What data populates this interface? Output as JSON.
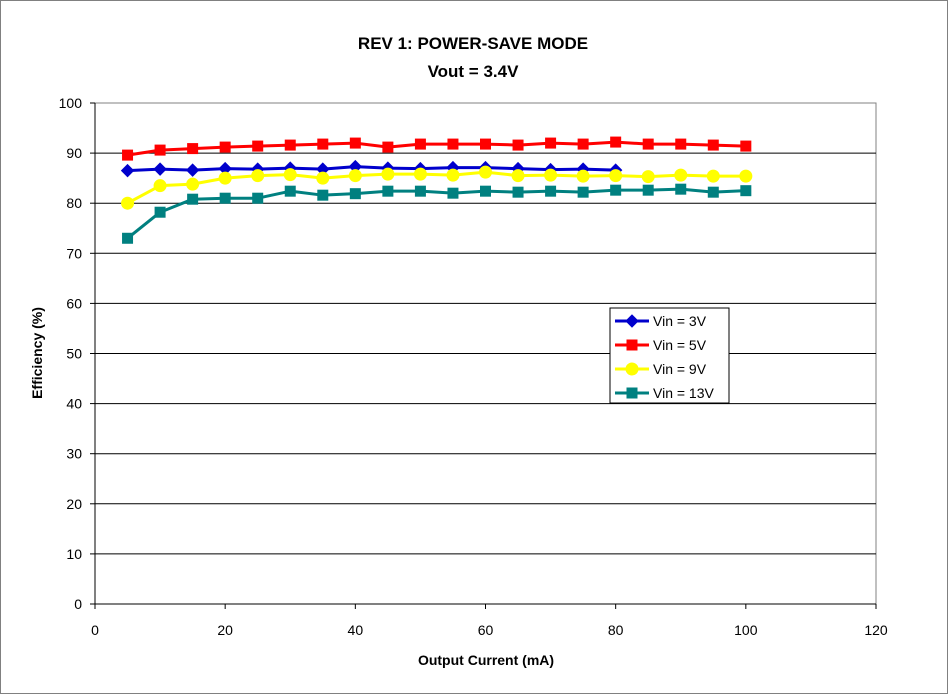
{
  "chart_data": {
    "type": "line",
    "title": "REV 1: POWER-SAVE MODE",
    "subtitle": "Vout = 3.4V",
    "xlabel": "Output Current (mA)",
    "ylabel": "Efficiency (%)",
    "xlim": [
      0,
      120
    ],
    "ylim": [
      0,
      100
    ],
    "xticks": [
      0,
      20,
      40,
      60,
      80,
      100,
      120
    ],
    "yticks": [
      0,
      10,
      20,
      30,
      40,
      50,
      60,
      70,
      80,
      90,
      100
    ],
    "xtick_labels": [
      "0",
      "20",
      "40",
      "60",
      "80",
      "100",
      "120"
    ],
    "ytick_labels": [
      "0",
      "10",
      "20",
      "30",
      "40",
      "50",
      "60",
      "70",
      "80",
      "90",
      "100"
    ],
    "grid": "horizontal major",
    "legend_position": "right-center",
    "plot_background": "#ffffff",
    "series": [
      {
        "name": "Vin = 3V",
        "color": "#0000cc",
        "marker": "diamond",
        "x": [
          5,
          10,
          15,
          20,
          25,
          30,
          35,
          40,
          45,
          50,
          55,
          60,
          65,
          70,
          75,
          80
        ],
        "y": [
          86.5,
          86.8,
          86.6,
          86.9,
          86.8,
          87.0,
          86.8,
          87.3,
          87.0,
          86.9,
          87.1,
          87.1,
          86.9,
          86.7,
          86.8,
          86.6
        ]
      },
      {
        "name": "Vin = 5V",
        "color": "#ff0000",
        "marker": "square",
        "x": [
          5,
          10,
          15,
          20,
          25,
          30,
          35,
          40,
          45,
          50,
          55,
          60,
          65,
          70,
          75,
          80,
          85,
          90,
          95,
          100
        ],
        "y": [
          89.6,
          90.6,
          90.9,
          91.2,
          91.4,
          91.6,
          91.8,
          92.0,
          91.2,
          91.8,
          91.8,
          91.8,
          91.6,
          92.0,
          91.8,
          92.2,
          91.8,
          91.8,
          91.6,
          91.4
        ]
      },
      {
        "name": "Vin = 9V",
        "color": "#ffff00",
        "marker": "circle",
        "x": [
          5,
          10,
          15,
          20,
          25,
          30,
          35,
          40,
          45,
          50,
          55,
          60,
          65,
          70,
          75,
          80,
          85,
          90,
          95,
          100
        ],
        "y": [
          80.0,
          83.5,
          83.8,
          85.0,
          85.5,
          85.7,
          85.0,
          85.5,
          85.8,
          85.8,
          85.6,
          86.2,
          85.5,
          85.6,
          85.4,
          85.5,
          85.3,
          85.6,
          85.4,
          85.4
        ]
      },
      {
        "name": "Vin = 13V",
        "color": "#008080",
        "marker": "square",
        "x": [
          5,
          10,
          15,
          20,
          25,
          30,
          35,
          40,
          45,
          50,
          55,
          60,
          65,
          70,
          75,
          80,
          85,
          90,
          95,
          100
        ],
        "y": [
          73.0,
          78.2,
          80.8,
          81.0,
          81.0,
          82.4,
          81.6,
          81.9,
          82.4,
          82.4,
          82.0,
          82.4,
          82.2,
          82.4,
          82.2,
          82.6,
          82.6,
          82.8,
          82.2,
          82.5
        ]
      }
    ]
  }
}
